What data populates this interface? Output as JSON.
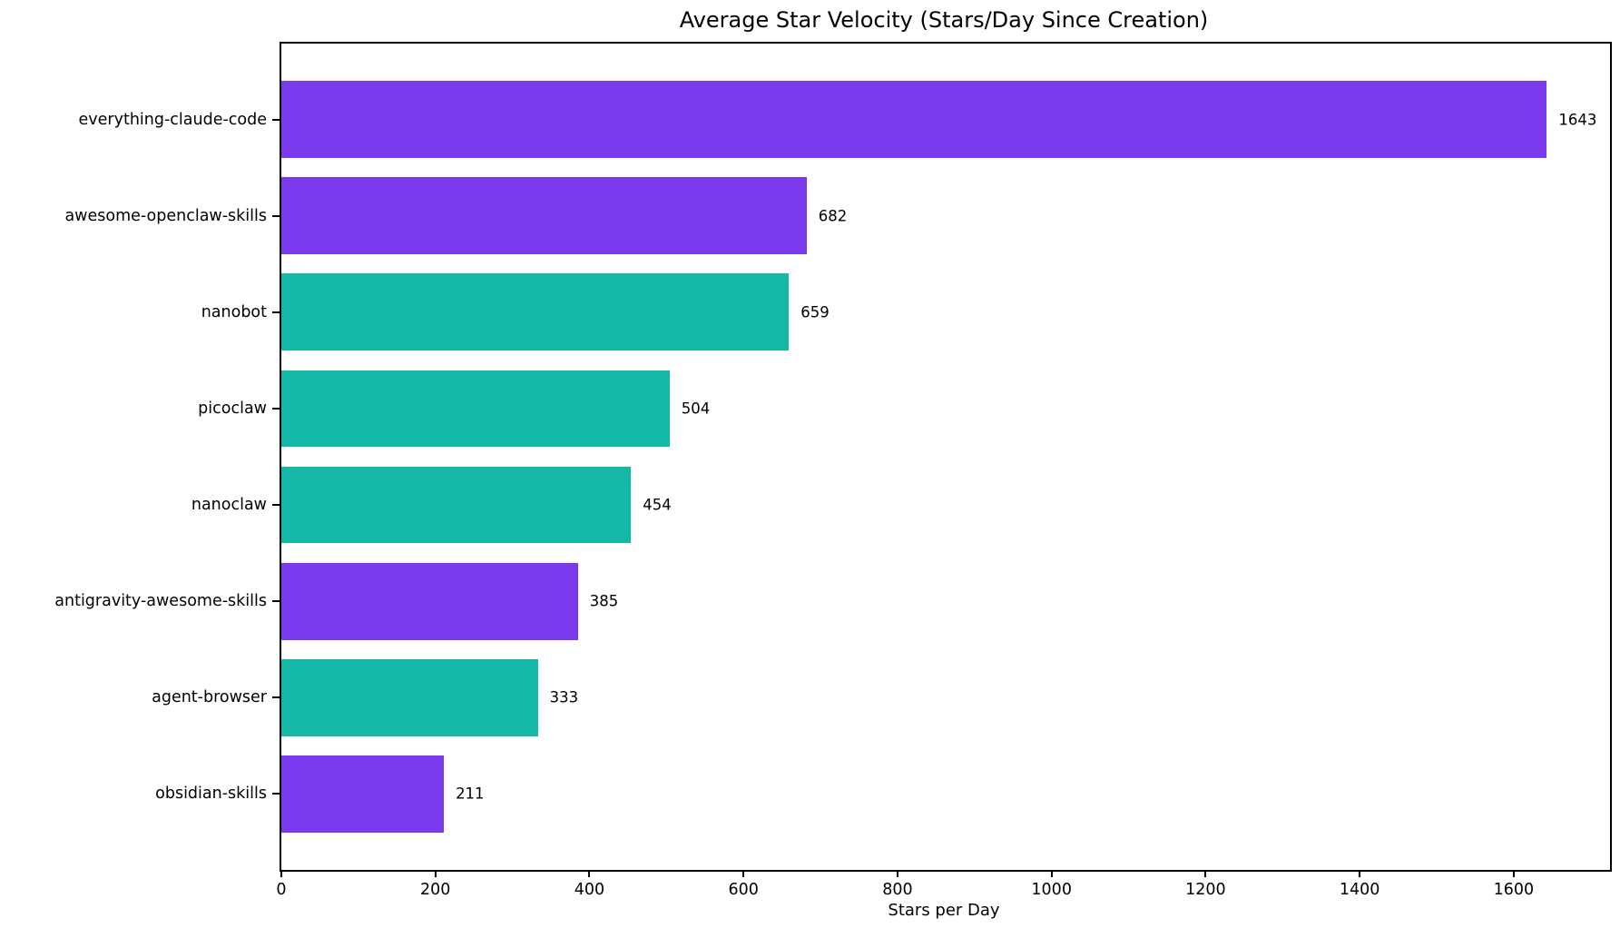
{
  "chart_data": {
    "type": "bar",
    "orientation": "horizontal",
    "title": "Average Star Velocity (Stars/Day Since Creation)",
    "xlabel": "Stars per Day",
    "ylabel": "",
    "categories": [
      "everything-claude-code",
      "awesome-openclaw-skills",
      "nanobot",
      "picoclaw",
      "nanoclaw",
      "antigravity-awesome-skills",
      "agent-browser",
      "obsidian-skills"
    ],
    "values": [
      1643,
      682,
      659,
      504,
      454,
      385,
      333,
      211
    ],
    "value_labels": [
      "1643",
      "682",
      "659",
      "504",
      "454",
      "385",
      "333",
      "211"
    ],
    "bar_colors": [
      "#7c3aed",
      "#7c3aed",
      "#14b8a6",
      "#14b8a6",
      "#14b8a6",
      "#7c3aed",
      "#14b8a6",
      "#7c3aed"
    ],
    "accent_colors": {
      "purple": "#7c3aed",
      "teal": "#14b8a6"
    },
    "x_ticks": [
      0,
      200,
      400,
      600,
      800,
      1000,
      1200,
      1400,
      1600
    ],
    "x_tick_labels": [
      "0",
      "200",
      "400",
      "600",
      "800",
      "1000",
      "1200",
      "1400",
      "1600"
    ],
    "xlim": [
      0,
      1725
    ],
    "grid": false,
    "legend_position": "none"
  }
}
